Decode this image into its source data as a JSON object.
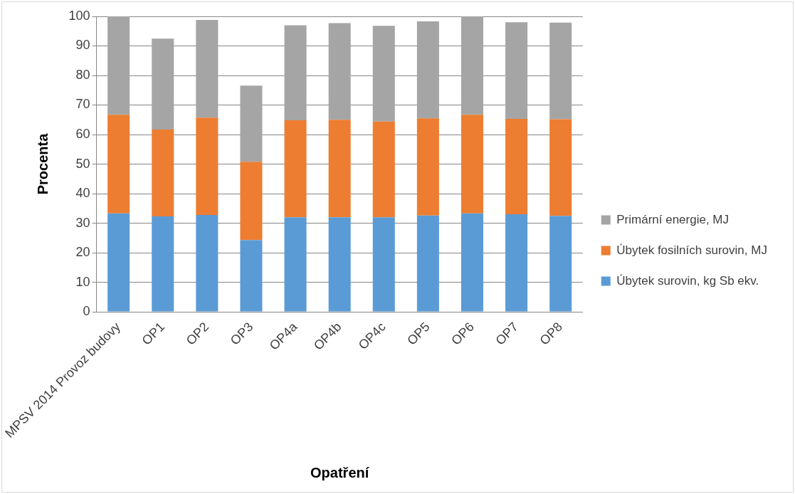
{
  "chart_data": {
    "type": "bar",
    "stacked": true,
    "xlabel": "Opatření",
    "ylabel": "Procenta",
    "categories": [
      "MPSV 2014 Provoz budovy",
      "OP1",
      "OP2",
      "OP3",
      "OP4a",
      "OP4b",
      "OP4c",
      "OP5",
      "OP6",
      "OP7",
      "OP8"
    ],
    "series": [
      {
        "name": "Úbytek surovin, kg Sb ekv.",
        "color": "#5b9bd5",
        "values": [
          33.3,
          32.3,
          32.8,
          24.3,
          32.0,
          32.0,
          32.0,
          32.6,
          33.3,
          33.0,
          32.5
        ]
      },
      {
        "name": "Úbytek fosilních surovin, MJ",
        "color": "#ed7d31",
        "values": [
          33.4,
          29.4,
          32.9,
          26.5,
          32.8,
          33.0,
          32.4,
          32.9,
          33.4,
          32.3,
          32.7
        ]
      },
      {
        "name": "Primární energie, MJ",
        "color": "#a5a5a5",
        "values": [
          33.3,
          30.8,
          33.1,
          25.8,
          32.2,
          32.7,
          32.4,
          32.8,
          33.3,
          32.7,
          32.7
        ]
      }
    ],
    "ylim": [
      0,
      100
    ],
    "yticks": [
      0,
      10,
      20,
      30,
      40,
      50,
      60,
      70,
      80,
      90,
      100
    ],
    "grid": "y",
    "legend": "right"
  }
}
